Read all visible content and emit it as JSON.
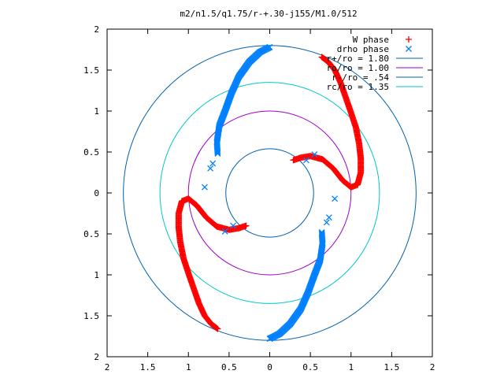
{
  "chart_data": {
    "type": "scatter",
    "title": "m2/n1.5/q1.75/r-+.30-j155/M1.0/512",
    "xlabel": "",
    "ylabel": "",
    "xlim": [
      -2,
      2
    ],
    "ylim": [
      -2,
      2
    ],
    "x_ticks": [
      -2,
      -1.5,
      -1,
      -0.5,
      0,
      0.5,
      1,
      1.5,
      2
    ],
    "y_ticks": [
      -2,
      -1.5,
      -1,
      -0.5,
      0,
      0.5,
      1,
      1.5,
      2
    ],
    "x_tick_labels": [
      "2",
      "1.5",
      "1",
      "0.5",
      "0",
      "0.5",
      "1",
      "1.5",
      "2"
    ],
    "y_tick_labels": [
      "2",
      "1.5",
      "1",
      "0.5",
      "0",
      "0.5",
      "1",
      "1.5",
      "2"
    ],
    "grid": false,
    "legend_position": "top-right",
    "series": [
      {
        "name": "W phase",
        "marker": "plus",
        "color": "#ff0000",
        "points": [
          [
            0.64,
            1.66
          ],
          [
            0.72,
            1.6
          ],
          [
            0.8,
            1.5
          ],
          [
            0.87,
            1.35
          ],
          [
            0.93,
            1.18
          ],
          [
            1.0,
            0.98
          ],
          [
            1.06,
            0.8
          ],
          [
            1.1,
            0.6
          ],
          [
            1.12,
            0.42
          ],
          [
            1.12,
            0.25
          ],
          [
            1.08,
            0.1
          ],
          [
            1.0,
            0.07
          ],
          [
            0.9,
            0.15
          ],
          [
            0.78,
            0.3
          ],
          [
            0.65,
            0.41
          ],
          [
            0.5,
            0.45
          ],
          [
            0.38,
            0.43
          ],
          [
            0.29,
            0.4
          ],
          [
            -0.64,
            -1.66
          ],
          [
            -0.72,
            -1.6
          ],
          [
            -0.8,
            -1.5
          ],
          [
            -0.87,
            -1.35
          ],
          [
            -0.93,
            -1.18
          ],
          [
            -1.0,
            -0.98
          ],
          [
            -1.06,
            -0.8
          ],
          [
            -1.1,
            -0.6
          ],
          [
            -1.12,
            -0.42
          ],
          [
            -1.12,
            -0.25
          ],
          [
            -1.08,
            -0.1
          ],
          [
            -1.0,
            -0.07
          ],
          [
            -0.9,
            -0.15
          ],
          [
            -0.78,
            -0.3
          ],
          [
            -0.65,
            -0.41
          ],
          [
            -0.5,
            -0.45
          ],
          [
            -0.38,
            -0.43
          ],
          [
            -0.29,
            -0.4
          ]
        ]
      },
      {
        "name": "drho phase",
        "marker": "cross",
        "color": "#0080ff",
        "points": [
          [
            0.0,
            1.78
          ],
          [
            -0.12,
            1.72
          ],
          [
            -0.25,
            1.6
          ],
          [
            -0.38,
            1.42
          ],
          [
            -0.47,
            1.22
          ],
          [
            -0.55,
            1.0
          ],
          [
            -0.62,
            0.82
          ],
          [
            -0.65,
            0.62
          ],
          [
            -0.64,
            0.48
          ],
          [
            -0.7,
            0.36
          ],
          [
            -0.73,
            0.3
          ],
          [
            -0.8,
            0.07
          ],
          [
            -0.45,
            -0.4
          ],
          [
            -0.55,
            -0.47
          ],
          [
            0.0,
            -1.78
          ],
          [
            0.12,
            -1.72
          ],
          [
            0.25,
            -1.6
          ],
          [
            0.38,
            -1.42
          ],
          [
            0.47,
            -1.22
          ],
          [
            0.55,
            -1.0
          ],
          [
            0.62,
            -0.82
          ],
          [
            0.65,
            -0.62
          ],
          [
            0.64,
            -0.48
          ],
          [
            0.7,
            -0.36
          ],
          [
            0.73,
            -0.3
          ],
          [
            0.8,
            -0.07
          ],
          [
            0.45,
            0.4
          ],
          [
            0.55,
            0.47
          ]
        ]
      },
      {
        "name": "r+/ro = 1.80",
        "type": "circle",
        "radius": 1.8,
        "color": "#0060ad"
      },
      {
        "name": "ro/ro = 1.00",
        "type": "circle",
        "radius": 1.0,
        "color": "#a000c8"
      },
      {
        "name": "r-/ro = .54",
        "type": "circle",
        "radius": 0.54,
        "color": "#0060ad"
      },
      {
        "name": "rc/ro = 1.35",
        "type": "circle",
        "radius": 1.35,
        "color": "#00c8c8"
      }
    ]
  }
}
